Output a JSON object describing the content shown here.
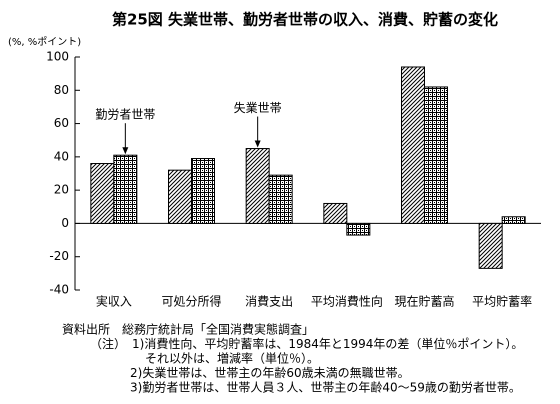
{
  "chart_data": {
    "type": "bar",
    "title": "第25図 失業世帯、勤労者世帯の収入、消費、貯蓄の変化",
    "y_unit": "(%, %ポイント)",
    "categories": [
      "実収入",
      "可処分所得",
      "消費支出",
      "平均消費性向",
      "現在貯蓄高",
      "平均貯蓄率"
    ],
    "series": [
      {
        "name": "失業世帯",
        "color": "#000000",
        "pattern": "diagonal",
        "values": [
          36,
          32,
          45,
          12,
          94,
          -27
        ]
      },
      {
        "name": "勤労者世帯",
        "color": "#000000",
        "pattern": "crosshatch",
        "values": [
          41,
          39,
          29,
          -7,
          82,
          4
        ]
      }
    ],
    "ylim": [
      -40,
      100
    ],
    "yticks": [
      -40,
      -20,
      0,
      20,
      40,
      60,
      80,
      100
    ],
    "grid": false,
    "annotations": [
      {
        "series": 1,
        "category": 0
      },
      {
        "series": 0,
        "category": 2
      }
    ],
    "notes": [
      "資料出所　総務庁統計局「全国消費実態調査」",
      "（注）　1)消費性向、平均貯蓄率は、1984年と1994年の差（単位％ポイント）。",
      "それ以外は、増減率（単位％）。",
      "2)失業世帯は、世帯主の年齢60歳未満の無職世帯。",
      "3)勤労者世帯は、世帯人員３人、世帯主の年齢40～59歳の勤労者世帯。"
    ]
  }
}
